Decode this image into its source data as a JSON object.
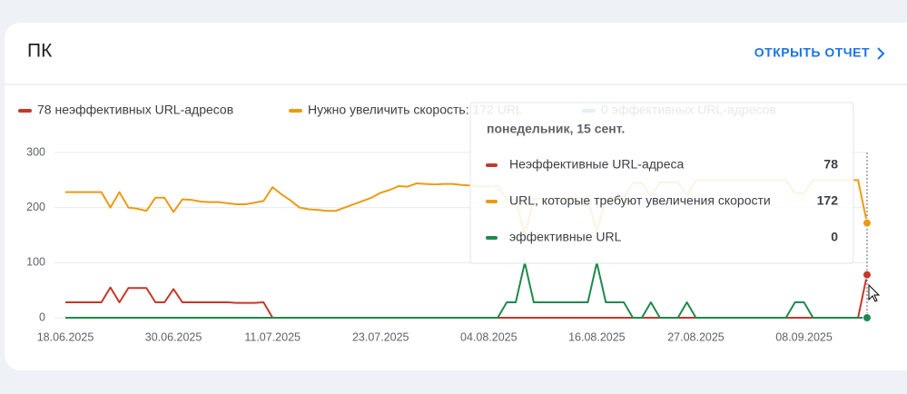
{
  "card": {
    "title": "ПК",
    "link": "ОТКРЫТЬ ОТЧЕТ"
  },
  "chart_data": {
    "type": "line",
    "categories": [
      "18.06.2025",
      null,
      null,
      null,
      null,
      null,
      null,
      null,
      null,
      null,
      null,
      null,
      "30.06.2025",
      null,
      null,
      null,
      null,
      null,
      null,
      null,
      null,
      null,
      null,
      "11.07.2025",
      null,
      null,
      null,
      null,
      null,
      null,
      null,
      null,
      null,
      null,
      null,
      "23.07.2025",
      null,
      null,
      null,
      null,
      null,
      null,
      null,
      null,
      null,
      null,
      null,
      "04.08.2025",
      null,
      null,
      null,
      null,
      null,
      null,
      null,
      null,
      null,
      null,
      null,
      "16.08.2025",
      null,
      null,
      null,
      null,
      null,
      null,
      null,
      null,
      null,
      null,
      "27.08.2025",
      null,
      null,
      null,
      null,
      null,
      null,
      null,
      null,
      null,
      null,
      null,
      "08.09.2025",
      null,
      null,
      null,
      null,
      null,
      null,
      null
    ],
    "series": [
      {
        "name": "78 неэффективных URL-адресов",
        "color": "#c5382b",
        "values": [
          28,
          28,
          28,
          28,
          28,
          55,
          28,
          54,
          54,
          54,
          28,
          28,
          52,
          28,
          28,
          28,
          28,
          28,
          28,
          27,
          27,
          27,
          28,
          0,
          0,
          0,
          0,
          0,
          0,
          0,
          0,
          0,
          0,
          0,
          0,
          0,
          0,
          0,
          0,
          0,
          0,
          0,
          0,
          0,
          0,
          0,
          0,
          0,
          0,
          0,
          0,
          0,
          0,
          0,
          0,
          0,
          0,
          0,
          0,
          0,
          0,
          0,
          0,
          0,
          0,
          0,
          0,
          0,
          0,
          0,
          0,
          0,
          0,
          0,
          0,
          0,
          0,
          0,
          0,
          0,
          0,
          0,
          0,
          0,
          0,
          0,
          0,
          0,
          0,
          78
        ]
      },
      {
        "name": "Нужно увеличить скорость: 172 URL",
        "color": "#eb9b13",
        "values": [
          228,
          228,
          228,
          228,
          228,
          200,
          228,
          200,
          198,
          194,
          218,
          218,
          192,
          215,
          214,
          211,
          210,
          210,
          208,
          206,
          206,
          209,
          212,
          237,
          224,
          213,
          200,
          197,
          196,
          194,
          194,
          200,
          206,
          212,
          218,
          227,
          232,
          239,
          238,
          244,
          243,
          242,
          243,
          243,
          241,
          240,
          239,
          238,
          240,
          214,
          214,
          150,
          216,
          216,
          216,
          216,
          216,
          216,
          216,
          155,
          218,
          218,
          218,
          245,
          245,
          220,
          246,
          246,
          246,
          222,
          250,
          250,
          250,
          250,
          250,
          250,
          250,
          250,
          250,
          250,
          250,
          226,
          226,
          250,
          250,
          250,
          250,
          250,
          250,
          172
        ]
      },
      {
        "name": "0 эффективных URL-адресов",
        "color": "#1e8a4c",
        "values": [
          0,
          0,
          0,
          0,
          0,
          0,
          0,
          0,
          0,
          0,
          0,
          0,
          0,
          0,
          0,
          0,
          0,
          0,
          0,
          0,
          0,
          0,
          0,
          0,
          0,
          0,
          0,
          0,
          0,
          0,
          0,
          0,
          0,
          0,
          0,
          0,
          0,
          0,
          0,
          0,
          0,
          0,
          0,
          0,
          0,
          0,
          0,
          0,
          0,
          28,
          28,
          100,
          28,
          28,
          28,
          28,
          28,
          28,
          28,
          100,
          28,
          28,
          28,
          0,
          0,
          28,
          0,
          0,
          0,
          28,
          0,
          0,
          0,
          0,
          0,
          0,
          0,
          0,
          0,
          0,
          0,
          28,
          28,
          0,
          0,
          0,
          0,
          0,
          0,
          0
        ]
      }
    ],
    "ylim": [
      0,
      300
    ],
    "yticks": [
      0,
      100,
      200,
      300
    ],
    "grid": true
  },
  "tooltip": {
    "title": "понедельник, 15 сент.",
    "labels": [
      "Неэффективные URL-адреса",
      "URL, которые требуют увеличения скорости",
      "эффективные URL"
    ]
  }
}
